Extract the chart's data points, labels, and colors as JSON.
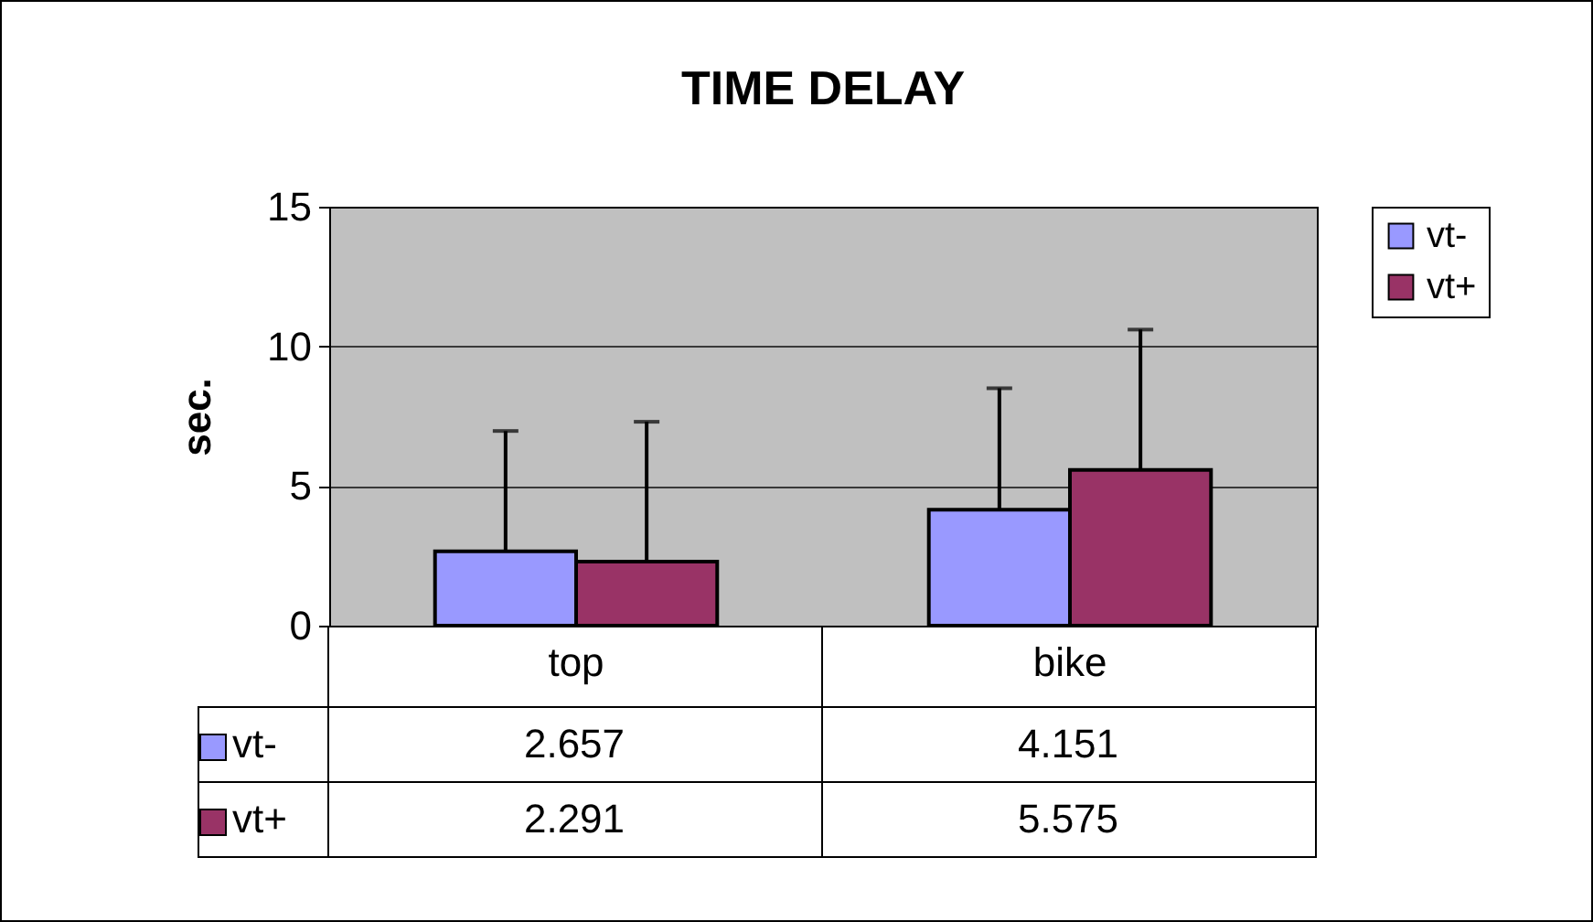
{
  "chart_data": {
    "type": "bar",
    "title": "TIME DELAY",
    "ylabel": "sec.",
    "categories": [
      "top",
      "bike"
    ],
    "series": [
      {
        "name": "vt-",
        "color": "#9999ff",
        "values": [
          2.657,
          4.151
        ],
        "errors": [
          [
            2.657,
            6.97
          ],
          [
            4.151,
            8.5
          ]
        ]
      },
      {
        "name": "vt+",
        "color": "#993366",
        "values": [
          2.291,
          5.575
        ],
        "errors": [
          [
            2.291,
            7.3
          ],
          [
            5.575,
            10.6
          ]
        ]
      }
    ],
    "ylim": [
      0,
      15
    ],
    "yticks": [
      0,
      5,
      10,
      15
    ],
    "grid": "y",
    "legend": "right",
    "data_labels": true
  }
}
